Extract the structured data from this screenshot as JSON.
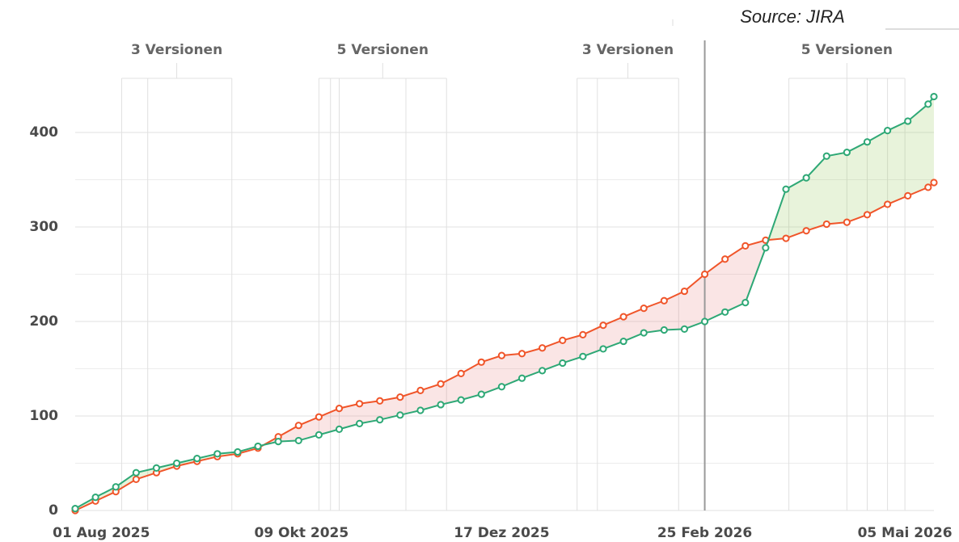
{
  "chart_data": {
    "type": "line",
    "source": "Source: JIRA",
    "x": [
      "2025-07-23",
      "2025-07-30",
      "2025-08-06",
      "2025-08-13",
      "2025-08-20",
      "2025-08-27",
      "2025-09-03",
      "2025-09-10",
      "2025-09-17",
      "2025-09-24",
      "2025-10-01",
      "2025-10-08",
      "2025-10-15",
      "2025-10-22",
      "2025-10-29",
      "2025-11-05",
      "2025-11-12",
      "2025-11-19",
      "2025-11-26",
      "2025-12-03",
      "2025-12-10",
      "2025-12-17",
      "2025-12-24",
      "2025-12-31",
      "2026-01-07",
      "2026-01-14",
      "2026-01-21",
      "2026-01-28",
      "2026-02-04",
      "2026-02-11",
      "2026-02-18",
      "2026-02-25",
      "2026-03-04",
      "2026-03-11",
      "2026-03-18",
      "2026-03-25",
      "2026-04-01",
      "2026-04-08",
      "2026-04-15",
      "2026-04-22",
      "2026-04-29",
      "2026-05-06",
      "2026-05-13",
      "2026-05-15"
    ],
    "series": [
      {
        "color": "#f0552a",
        "values": [
          0,
          10,
          20,
          33,
          40,
          47,
          52,
          57,
          60,
          66,
          78,
          90,
          99,
          108,
          113,
          116,
          120,
          127,
          134,
          145,
          157,
          164,
          166,
          172,
          180,
          186,
          196,
          205,
          214,
          222,
          232,
          250,
          266,
          280,
          286,
          288,
          296,
          303,
          305,
          313,
          324,
          333,
          342,
          347
        ]
      },
      {
        "color": "#2ea876",
        "values": [
          2,
          14,
          25,
          40,
          45,
          50,
          55,
          60,
          62,
          68,
          73,
          74,
          80,
          86,
          92,
          96,
          101,
          106,
          112,
          117,
          123,
          131,
          140,
          148,
          156,
          163,
          171,
          179,
          188,
          191,
          192,
          200,
          210,
          220,
          278,
          340,
          352,
          375,
          379,
          390,
          402,
          412,
          430,
          438
        ]
      }
    ],
    "xlim": [
      "2025-07-23",
      "2026-05-15"
    ],
    "xticks": [
      {
        "value": "2025-08-01",
        "label": "01 Aug 2025"
      },
      {
        "value": "2025-10-09",
        "label": "09 Okt 2025"
      },
      {
        "value": "2025-12-17",
        "label": "17 Dez 2025"
      },
      {
        "value": "2026-02-25",
        "label": "25 Feb 2026"
      },
      {
        "value": "2026-05-05",
        "label": "05 Mai 2026"
      }
    ],
    "ylim": [
      0,
      450
    ],
    "yticks": [
      0,
      100,
      200,
      300,
      400
    ],
    "y_minor_ticks": [
      50,
      150,
      250,
      350
    ],
    "grid": true,
    "today": "2026-02-25",
    "releases": [
      {
        "label": "3 Versionen",
        "dates": [
          "2025-08-08",
          "2025-08-17",
          "2025-09-15"
        ]
      },
      {
        "label": "5 Versionen",
        "dates": [
          "2025-10-15",
          "2025-10-19",
          "2025-10-22",
          "2025-11-14",
          "2025-11-28"
        ]
      },
      {
        "label": "3 Versionen",
        "dates": [
          "2026-01-12",
          "2026-01-19",
          "2026-02-16"
        ]
      },
      {
        "label": "5 Versionen",
        "dates": [
          "2026-03-26",
          "2026-04-15",
          "2026-04-22",
          "2026-04-29",
          "2026-05-05"
        ]
      }
    ]
  }
}
